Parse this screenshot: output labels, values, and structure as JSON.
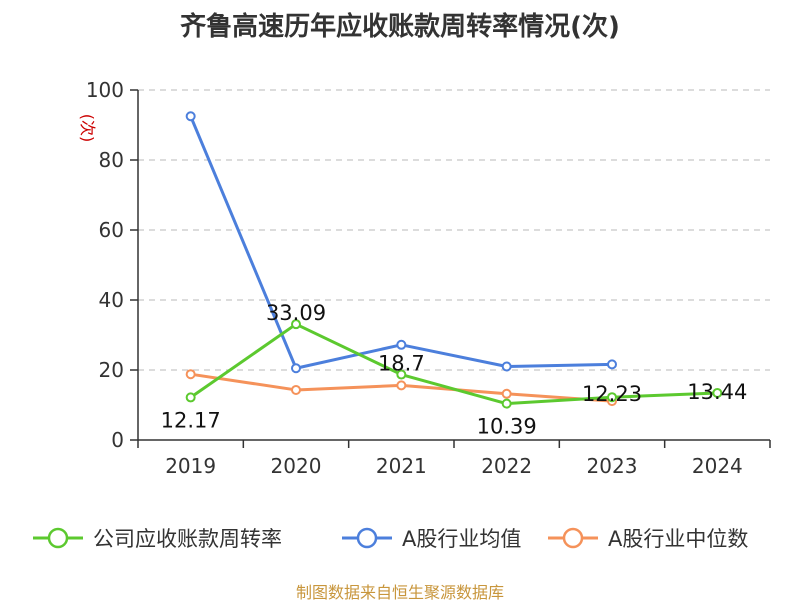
{
  "chart_data": {
    "type": "line",
    "title": "齐鲁高速历年应收账款周转率情况(次)",
    "ylabel": "(次)",
    "xlabel": "",
    "categories": [
      "2019",
      "2020",
      "2021",
      "2022",
      "2023",
      "2024"
    ],
    "ylim": [
      0,
      100
    ],
    "yticks": [
      0,
      20,
      40,
      60,
      80,
      100
    ],
    "grid": true,
    "legend_position": "bottom",
    "series": [
      {
        "name": "公司应收账款周转率",
        "color": "#5cc92f",
        "values": [
          12.17,
          33.09,
          18.7,
          10.39,
          12.23,
          13.44
        ],
        "show_labels": true
      },
      {
        "name": "A股行业均值",
        "color": "#4c7fdc",
        "values": [
          92.5,
          20.5,
          27.2,
          21.0,
          21.6,
          null
        ],
        "show_labels": false
      },
      {
        "name": "A股行业中位数",
        "color": "#f5925a",
        "values": [
          18.8,
          14.3,
          15.6,
          13.2,
          11.1,
          null
        ],
        "show_labels": false
      }
    ]
  },
  "source": "制图数据来自恒生聚源数据库"
}
